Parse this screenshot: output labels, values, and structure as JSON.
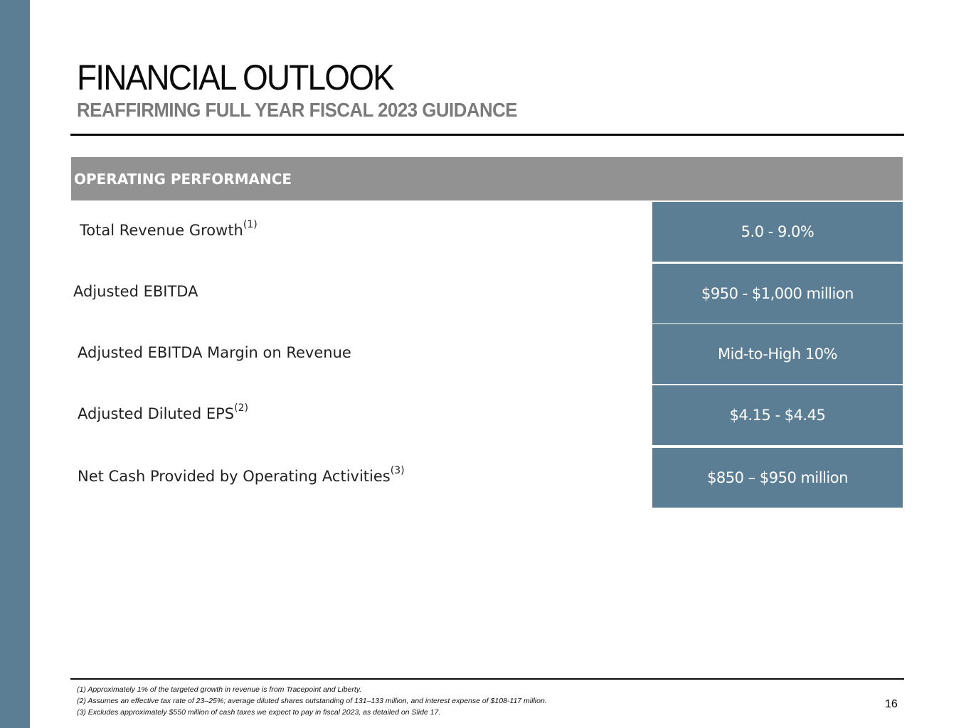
{
  "slide": {
    "title": "FINANCIAL OUTLOOK",
    "subtitle": "REAFFIRMING FULL YEAR FISCAL 2023 GUIDANCE",
    "page_number": "16"
  },
  "table": {
    "header": "OPERATING PERFORMANCE",
    "rows": [
      {
        "label": "Total Revenue Growth",
        "note": "(1)",
        "value": "5.0 - 9.0%"
      },
      {
        "label": "Adjusted EBITDA",
        "note": "",
        "value": "$950 - $1,000 million"
      },
      {
        "label": "Adjusted EBITDA Margin on Revenue",
        "note": "",
        "value": "Mid-to-High 10%"
      },
      {
        "label": "Adjusted Diluted EPS",
        "note": "(2)",
        "value": "$4.15 - $4.45"
      },
      {
        "label": "Net Cash Provided by Operating Activities",
        "note": "(3)",
        "value": "$850 – $950 million"
      }
    ]
  },
  "footnotes": [
    "(1) Approximately 1% of the targeted growth in revenue is from Tracepoint and Liberty.",
    "(2) Assumes an effective tax rate of 23–25%; average diluted shares outstanding of 131–133 million, and interest expense of $108-117 million.",
    "(3) Excludes approximately $550 million of cash taxes we expect to pay in fiscal 2023, as detailed on Slide 17."
  ],
  "colors": {
    "accent": "#5b7e95",
    "header_bg": "#929292"
  }
}
